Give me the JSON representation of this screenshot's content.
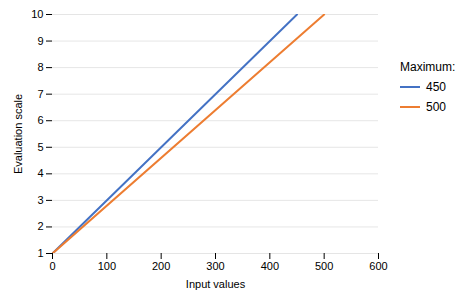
{
  "chart_data": {
    "type": "line",
    "xlabel": "Input values",
    "ylabel": "Evaluation scale",
    "xlim": [
      0,
      600
    ],
    "ylim": [
      1,
      10
    ],
    "xticks": [
      0,
      100,
      200,
      300,
      400,
      500,
      600
    ],
    "yticks": [
      1,
      2,
      3,
      4,
      5,
      6,
      7,
      8,
      9,
      10
    ],
    "series": [
      {
        "name": "450",
        "color": "#4472C4",
        "x": [
          0,
          450
        ],
        "values": [
          1,
          10
        ]
      },
      {
        "name": "500",
        "color": "#ED7D31",
        "x": [
          0,
          500
        ],
        "values": [
          1,
          10
        ]
      }
    ],
    "legend_title": "Maximum:",
    "legend": "right",
    "grid": "y"
  }
}
